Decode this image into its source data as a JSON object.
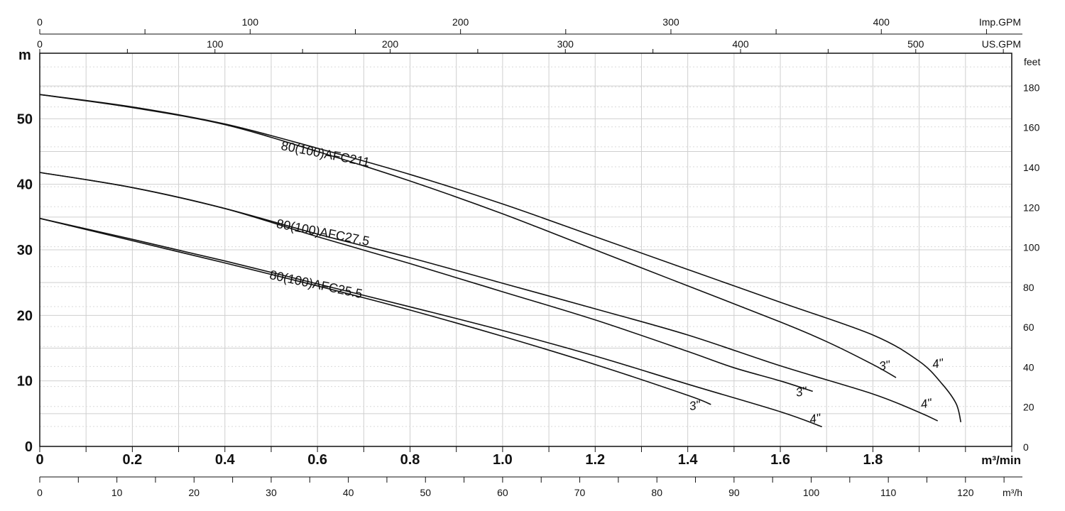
{
  "chart_data": {
    "type": "line",
    "title": "",
    "axes": {
      "x_bottom": {
        "label": "m³/min",
        "range": [
          0,
          2.1
        ],
        "ticks": [
          "0",
          "0.2",
          "0.4",
          "0.6",
          "0.8",
          "1.0",
          "1.2",
          "1.4",
          "1.6",
          "1.8"
        ],
        "tick_values": [
          0,
          0.2,
          0.4,
          0.6,
          0.8,
          1.0,
          1.2,
          1.4,
          1.6,
          1.8
        ]
      },
      "x_bottom2": {
        "label": "m³/h",
        "range": [
          0,
          126
        ],
        "ticks": [
          "0",
          "10",
          "20",
          "30",
          "40",
          "50",
          "60",
          "70",
          "80",
          "90",
          "100",
          "110",
          "120"
        ],
        "tick_values": [
          0,
          10,
          20,
          30,
          40,
          50,
          60,
          70,
          80,
          90,
          100,
          110,
          120
        ]
      },
      "x_top_us": {
        "label": "US.GPM",
        "range": [
          0,
          554.8
        ],
        "ticks": [
          "0",
          "100",
          "200",
          "300",
          "400",
          "500"
        ],
        "tick_values": [
          0,
          100,
          200,
          300,
          400,
          500
        ]
      },
      "x_top_imp": {
        "label": "Imp.GPM",
        "range": [
          0,
          462
        ],
        "ticks": [
          "0",
          "100",
          "200",
          "300",
          "400"
        ],
        "tick_values": [
          0,
          100,
          200,
          300,
          400
        ]
      },
      "y_left": {
        "label": "m",
        "range": [
          0,
          60
        ],
        "ticks": [
          "0",
          "10",
          "20",
          "30",
          "40",
          "50"
        ],
        "tick_values": [
          0,
          10,
          20,
          30,
          40,
          50
        ]
      },
      "y_right": {
        "label": "feet",
        "range": [
          0,
          196.85
        ],
        "ticks": [
          "0",
          "20",
          "40",
          "60",
          "80",
          "100",
          "120",
          "140",
          "160",
          "180"
        ],
        "tick_values": [
          0,
          20,
          40,
          60,
          80,
          100,
          120,
          140,
          160,
          180
        ]
      }
    },
    "grid": true,
    "series": [
      {
        "name": "80(100)AFC211",
        "size": "4\"",
        "x": [
          0,
          0.2,
          0.4,
          0.6,
          0.8,
          1.0,
          1.2,
          1.4,
          1.6,
          1.8,
          1.9,
          1.95,
          1.98,
          1.99
        ],
        "y": [
          53.7,
          51.8,
          49.2,
          45.5,
          41.5,
          37.0,
          32.0,
          27.0,
          22.0,
          17.0,
          13.0,
          9.5,
          6.5,
          3.7
        ]
      },
      {
        "name": "80(100)AFC211",
        "size": "3\"",
        "x": [
          0,
          0.2,
          0.4,
          0.6,
          0.8,
          1.0,
          1.2,
          1.4,
          1.6,
          1.7,
          1.8,
          1.85
        ],
        "y": [
          53.7,
          51.7,
          49.1,
          45.0,
          40.5,
          35.5,
          30.0,
          24.5,
          19.0,
          16.0,
          12.5,
          10.5
        ]
      },
      {
        "name": "80(100)AFC27.5",
        "size": "4\"",
        "x": [
          0,
          0.2,
          0.4,
          0.6,
          0.8,
          1.0,
          1.2,
          1.4,
          1.6,
          1.8,
          1.9,
          1.94
        ],
        "y": [
          41.8,
          39.5,
          36.3,
          32.4,
          28.8,
          24.9,
          21.0,
          17.0,
          12.3,
          8.0,
          5.2,
          3.9
        ]
      },
      {
        "name": "80(100)AFC27.5",
        "size": "3\"",
        "x": [
          0,
          0.2,
          0.4,
          0.6,
          0.8,
          1.0,
          1.2,
          1.4,
          1.5,
          1.6,
          1.67
        ],
        "y": [
          41.8,
          39.5,
          36.3,
          32.0,
          27.9,
          23.6,
          19.3,
          14.5,
          12.0,
          10.0,
          8.4
        ]
      },
      {
        "name": "80(100)AFC25.5",
        "size": "4\"",
        "x": [
          0,
          0.2,
          0.4,
          0.6,
          0.8,
          1.0,
          1.2,
          1.4,
          1.6,
          1.69
        ],
        "y": [
          34.8,
          31.6,
          28.3,
          24.8,
          21.3,
          17.7,
          13.8,
          9.5,
          5.3,
          3.0
        ]
      },
      {
        "name": "80(100)AFC25.5",
        "size": "3\"",
        "x": [
          0,
          0.2,
          0.4,
          0.6,
          0.8,
          1.0,
          1.2,
          1.4,
          1.45
        ],
        "y": [
          34.8,
          31.4,
          28.0,
          24.5,
          20.8,
          16.8,
          12.5,
          7.8,
          6.4
        ]
      }
    ],
    "labels": [
      {
        "text": "80(100)AFC211",
        "x": 0.52,
        "y": 45.3,
        "angle": 11
      },
      {
        "text": "80(100)AFC27.5",
        "x": 0.51,
        "y": 33.4,
        "angle": 11
      },
      {
        "text": "80(100)AFC25.5",
        "x": 0.495,
        "y": 25.6,
        "angle": 12
      },
      {
        "text": "3\"",
        "x": 1.815,
        "y": 11.6,
        "angle": -10
      },
      {
        "text": "4\"",
        "x": 1.93,
        "y": 11.9,
        "angle": -10
      },
      {
        "text": "3\"",
        "x": 1.635,
        "y": 7.6,
        "angle": -10
      },
      {
        "text": "4\"",
        "x": 1.905,
        "y": 5.8,
        "angle": -10
      },
      {
        "text": "3\"",
        "x": 1.405,
        "y": 5.5,
        "angle": -10
      },
      {
        "text": "4\"",
        "x": 1.665,
        "y": 3.5,
        "angle": -10
      }
    ]
  },
  "colors": {
    "line": "#111111",
    "grid_major": "#cfcfcf",
    "grid_minor": "#dadada",
    "frame": "#111111"
  }
}
